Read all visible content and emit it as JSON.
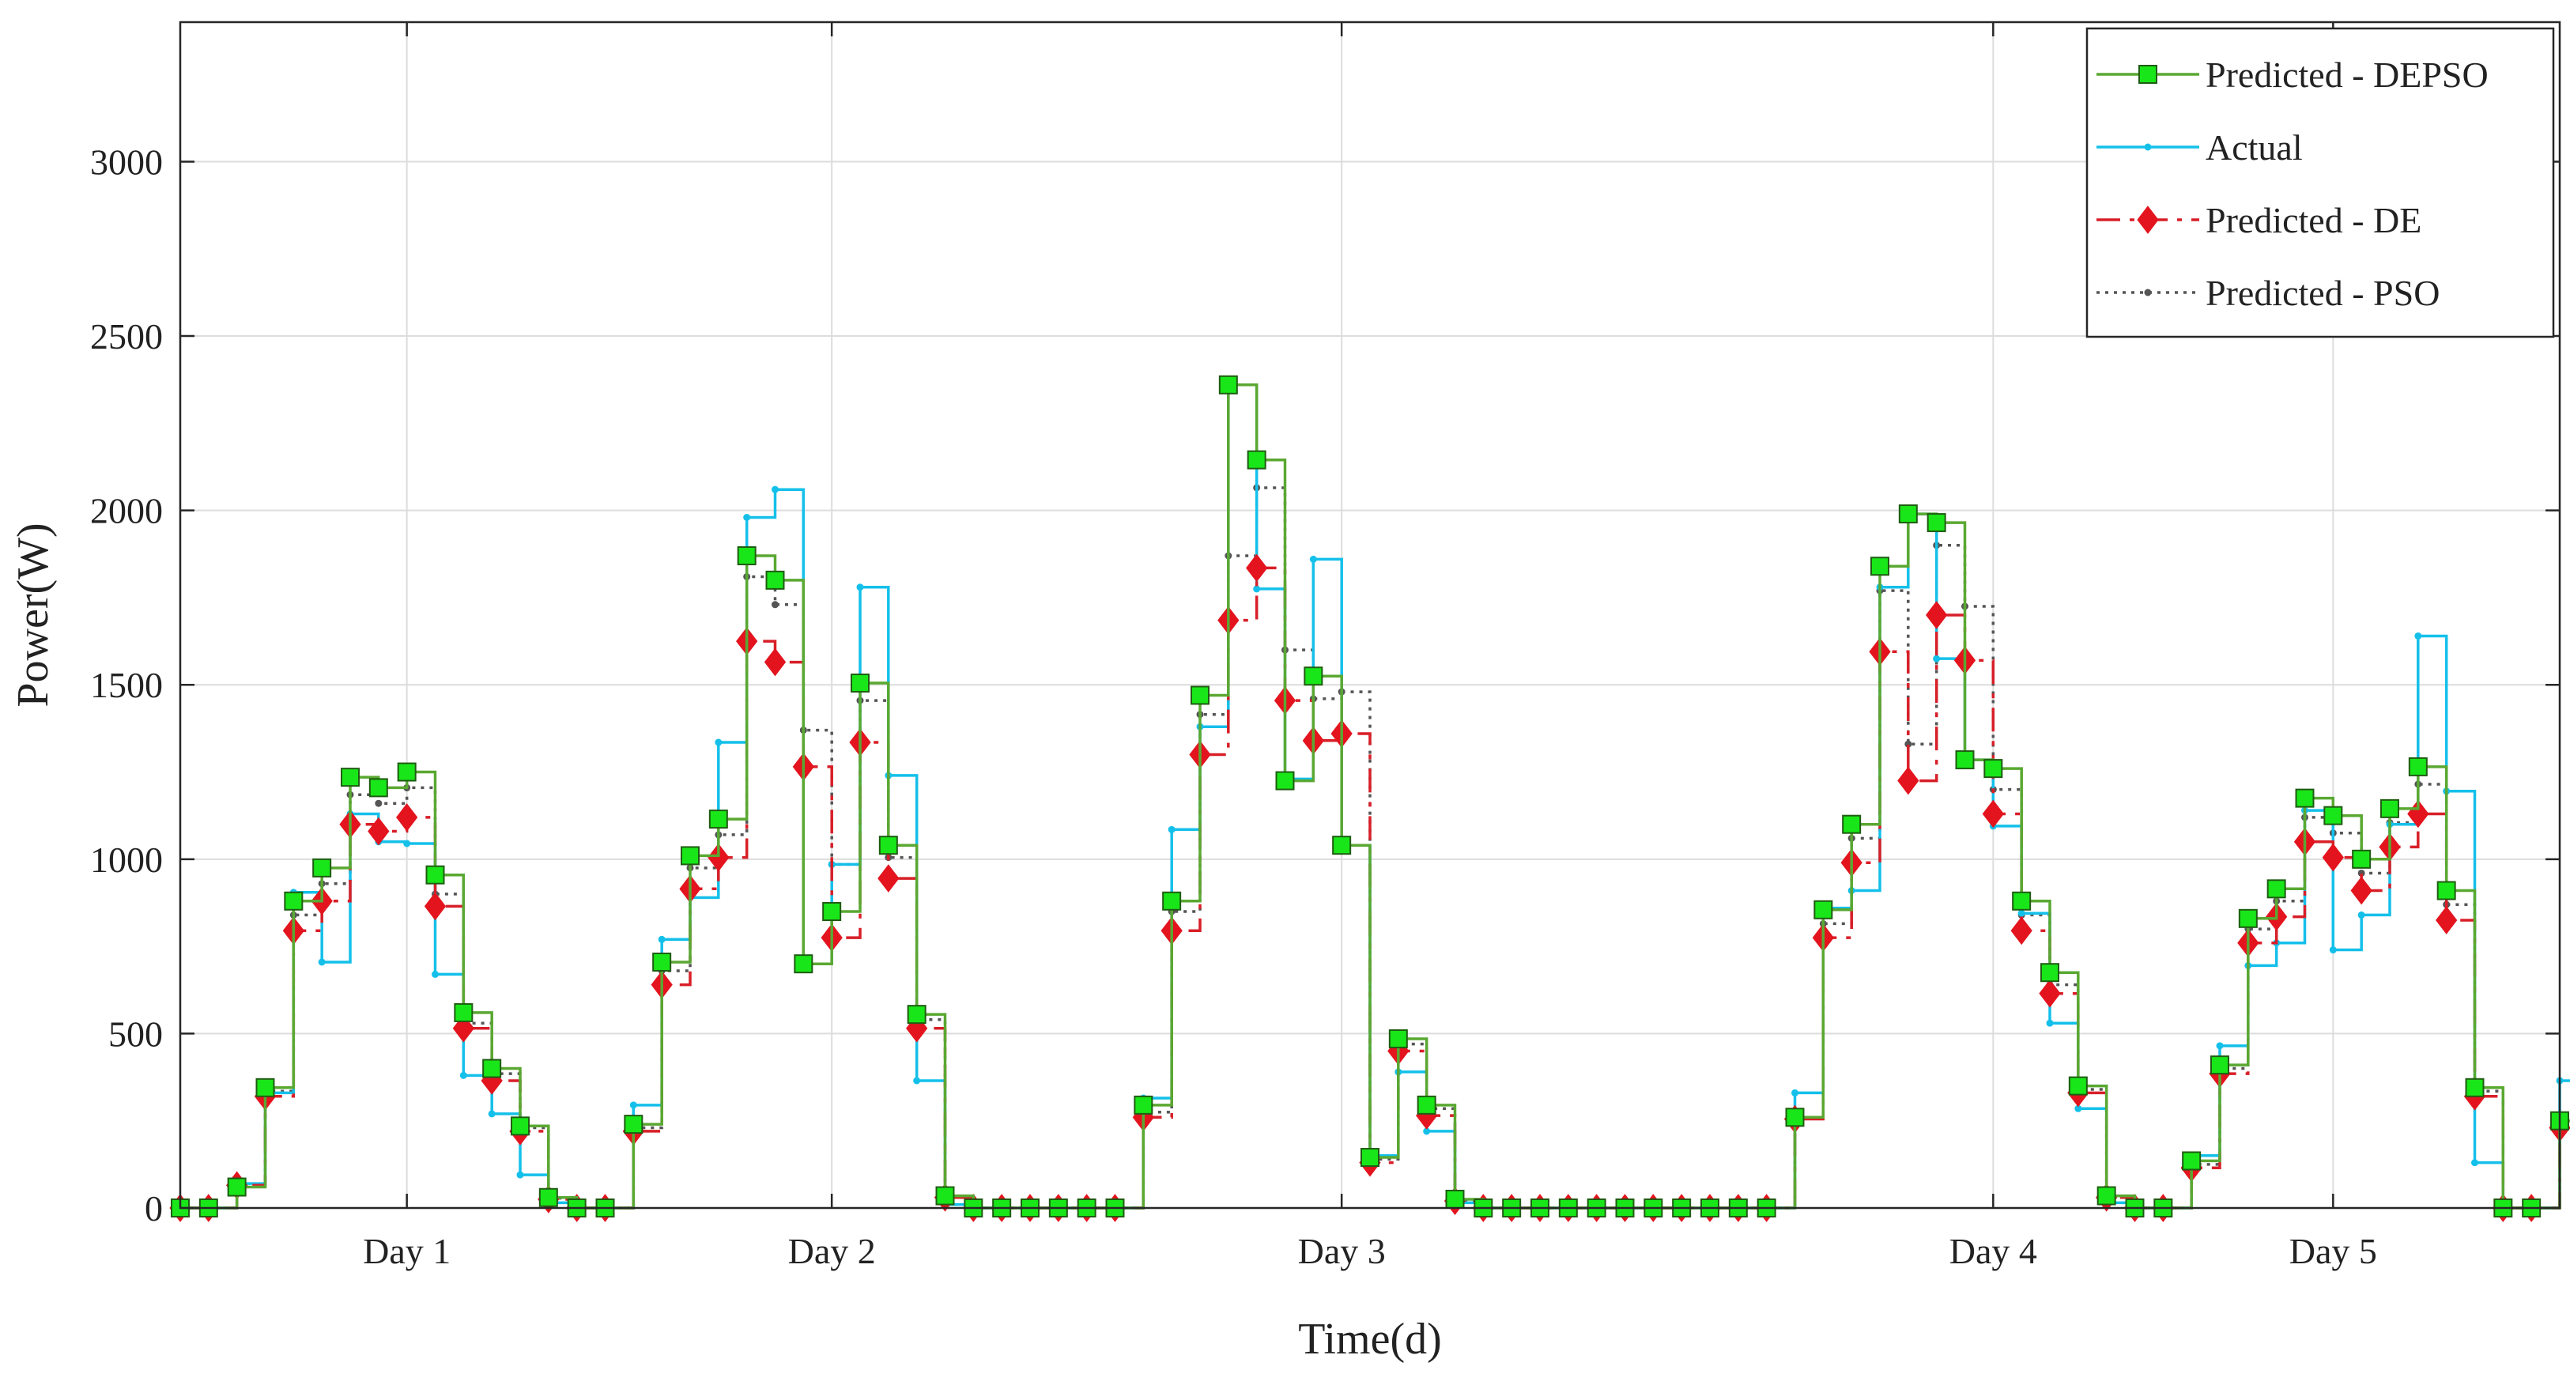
{
  "chart_data": {
    "type": "line",
    "step": true,
    "xlabel": "Time(d)",
    "ylabel": "Power(W)",
    "ylim": [
      0,
      3400
    ],
    "xlim": [
      0,
      84
    ],
    "yticks": [
      0,
      500,
      1000,
      1500,
      2000,
      2500,
      3000
    ],
    "grid": true,
    "legend_position": "top-right",
    "x_tick_labels": [
      {
        "label": "Day 1",
        "x": 8
      },
      {
        "label": "Day 2",
        "x": 23
      },
      {
        "label": "Day 3",
        "x": 41
      },
      {
        "label": "Day 4",
        "x": 64
      },
      {
        "label": "Day 5",
        "x": 76
      }
    ],
    "series": [
      {
        "name": "Predicted - DEPSO",
        "color": "#5aa832",
        "marker": "square",
        "values": [
          0,
          0,
          60,
          345,
          880,
          975,
          1235,
          1205,
          1250,
          955,
          560,
          400,
          235,
          30,
          0,
          0,
          240,
          705,
          1010,
          1115,
          1870,
          1800,
          700,
          850,
          1505,
          1040,
          555,
          35,
          0,
          0,
          0,
          0,
          0,
          0,
          295,
          880,
          1470,
          2360,
          2145,
          1225,
          1525,
          1040,
          145,
          485,
          295,
          25,
          0,
          0,
          0,
          0,
          0,
          0,
          0,
          0,
          0,
          0,
          0,
          260,
          855,
          1100,
          1840,
          1990,
          1965,
          1285,
          1260,
          880,
          675,
          350,
          35,
          0,
          0,
          135,
          410,
          830,
          915,
          1175,
          1125,
          1000,
          1145,
          1265,
          910,
          345,
          0,
          0,
          250
        ]
      },
      {
        "name": "Actual",
        "color": "#14c0ea",
        "marker": "dot",
        "values": [
          0,
          0,
          70,
          330,
          905,
          705,
          1130,
          1050,
          1045,
          670,
          380,
          270,
          95,
          15,
          0,
          0,
          295,
          770,
          890,
          1335,
          1980,
          2060,
          700,
          985,
          1780,
          1240,
          365,
          10,
          0,
          0,
          0,
          0,
          0,
          0,
          315,
          1085,
          1380,
          2360,
          1775,
          1230,
          1860,
          1040,
          150,
          390,
          220,
          15,
          0,
          0,
          0,
          0,
          0,
          0,
          0,
          0,
          0,
          0,
          0,
          330,
          860,
          910,
          1780,
          1990,
          1575,
          1285,
          1095,
          845,
          530,
          285,
          15,
          0,
          0,
          150,
          465,
          695,
          760,
          1140,
          740,
          840,
          1100,
          1640,
          1195,
          130,
          0,
          0,
          365
        ]
      },
      {
        "name": "Predicted - DE",
        "color": "#d81f28",
        "marker": "diamond",
        "values": [
          0,
          0,
          65,
          320,
          795,
          880,
          1100,
          1080,
          1120,
          865,
          515,
          365,
          220,
          25,
          0,
          0,
          220,
          640,
          915,
          1005,
          1625,
          1565,
          1265,
          775,
          1335,
          945,
          515,
          30,
          0,
          0,
          0,
          0,
          0,
          0,
          260,
          795,
          1300,
          1685,
          1835,
          1455,
          1340,
          1360,
          130,
          450,
          265,
          20,
          0,
          0,
          0,
          0,
          0,
          0,
          0,
          0,
          0,
          0,
          0,
          255,
          775,
          990,
          1595,
          1225,
          1700,
          1570,
          1130,
          795,
          615,
          330,
          30,
          0,
          0,
          115,
          385,
          760,
          835,
          1050,
          1005,
          910,
          1035,
          1130,
          825,
          320,
          0,
          0,
          230
        ]
      },
      {
        "name": "Predicted - PSO",
        "color": "#555555",
        "marker": "dot",
        "values": [
          0,
          0,
          65,
          335,
          840,
          930,
          1185,
          1160,
          1205,
          900,
          530,
          385,
          230,
          28,
          0,
          0,
          230,
          680,
          975,
          1070,
          1810,
          1730,
          1370,
          985,
          1455,
          1005,
          540,
          32,
          0,
          0,
          0,
          0,
          0,
          0,
          275,
          850,
          1415,
          1870,
          2065,
          1600,
          1460,
          1480,
          140,
          470,
          285,
          22,
          0,
          0,
          0,
          0,
          0,
          0,
          0,
          0,
          0,
          0,
          0,
          258,
          815,
          1060,
          1770,
          1330,
          1900,
          1725,
          1200,
          840,
          640,
          340,
          32,
          0,
          0,
          125,
          400,
          800,
          880,
          1120,
          1075,
          960,
          1105,
          1215,
          870,
          335,
          0,
          0,
          240
        ]
      }
    ]
  }
}
